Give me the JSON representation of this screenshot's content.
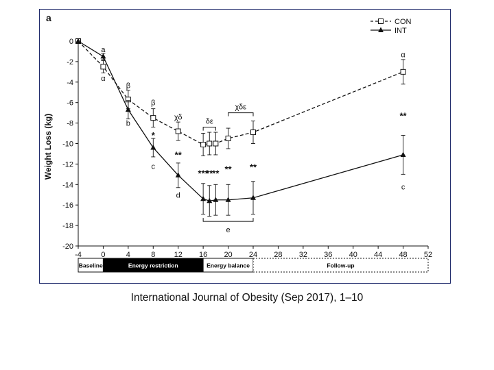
{
  "chart_data": {
    "type": "line",
    "panel_label": "a",
    "ylabel": "Weight Loss (kg)",
    "xlabel": "",
    "xlim": [
      -4,
      52
    ],
    "ylim": [
      -20,
      0
    ],
    "xticks": [
      -4,
      0,
      4,
      8,
      12,
      16,
      20,
      24,
      28,
      32,
      36,
      40,
      44,
      48,
      52
    ],
    "yticks": [
      0,
      -2,
      -4,
      -6,
      -8,
      -10,
      -12,
      -14,
      -16,
      -18,
      -20
    ],
    "series": [
      {
        "name": "CON",
        "style": "dashed",
        "marker": "open-square",
        "x": [
          -4,
          0,
          4,
          8,
          12,
          16,
          17,
          18,
          20,
          24,
          48
        ],
        "values": [
          0,
          -2.5,
          -5.7,
          -7.5,
          -8.8,
          -10.1,
          -10.0,
          -10.0,
          -9.5,
          -8.9,
          -3.0
        ],
        "err": [
          0,
          0.6,
          0.9,
          0.9,
          0.9,
          1.1,
          1.1,
          1.1,
          1.0,
          1.1,
          1.2
        ]
      },
      {
        "name": "INT",
        "style": "solid",
        "marker": "filled-triangle",
        "x": [
          -4,
          0,
          4,
          8,
          12,
          16,
          17,
          18,
          20,
          24,
          48
        ],
        "values": [
          0,
          -1.5,
          -6.7,
          -10.4,
          -13.1,
          -15.4,
          -15.6,
          -15.5,
          -15.5,
          -15.3,
          -11.1
        ],
        "err": [
          0,
          0.3,
          0.9,
          0.9,
          1.2,
          1.5,
          1.5,
          1.5,
          1.5,
          1.6,
          1.9
        ]
      }
    ],
    "annotations": [
      {
        "text": "a",
        "x": 0,
        "y": -0.8
      },
      {
        "text": "α",
        "x": 0,
        "y": -3.6
      },
      {
        "text": "β",
        "x": 4,
        "y": -4.3
      },
      {
        "text": "b",
        "x": 4,
        "y": -8.0
      },
      {
        "text": "β",
        "x": 8,
        "y": -6.0
      },
      {
        "text": "*",
        "x": 8,
        "y": -9.1
      },
      {
        "text": "c",
        "x": 8,
        "y": -12.2
      },
      {
        "text": "χδ",
        "x": 12,
        "y": -7.4
      },
      {
        "text": "**",
        "x": 12,
        "y": -11.0
      },
      {
        "text": "d",
        "x": 12,
        "y": -15.0
      },
      {
        "text": "δε",
        "x": 17,
        "y": -7.8
      },
      {
        "text": "χδε",
        "x": 22,
        "y": -6.4
      },
      {
        "text": "***",
        "x": 16,
        "y": -12.8
      },
      {
        "text": "**",
        "x": 17,
        "y": -12.8
      },
      {
        "text": "**",
        "x": 18,
        "y": -12.8
      },
      {
        "text": "**",
        "x": 20,
        "y": -12.4
      },
      {
        "text": "**",
        "x": 24,
        "y": -12.2
      },
      {
        "text": "e",
        "x": 20,
        "y": -18.4
      },
      {
        "text": "α",
        "x": 48,
        "y": -1.3
      },
      {
        "text": "**",
        "x": 48,
        "y": -7.2
      },
      {
        "text": "c",
        "x": 48,
        "y": -14.2
      }
    ],
    "brackets": [
      {
        "x1": 16,
        "x2": 18,
        "y": -8.4,
        "dir": "up"
      },
      {
        "x1": 20,
        "x2": 24,
        "y": -7.0,
        "dir": "up"
      },
      {
        "x1": 16,
        "x2": 24,
        "y": -17.6,
        "dir": "down"
      }
    ],
    "phases": [
      {
        "label": "Baseline",
        "x1": -4,
        "x2": 0,
        "fill": "#ffffff",
        "text": "#000000",
        "border": "solid"
      },
      {
        "label": "Energy restriction",
        "x1": 0,
        "x2": 16,
        "fill": "#000000",
        "text": "#ffffff",
        "border": "solid"
      },
      {
        "label": "Energy balance",
        "x1": 16,
        "x2": 24,
        "fill": "#ffffff",
        "text": "#000000",
        "border": "solid"
      },
      {
        "label": "Follow-up",
        "x1": 24,
        "x2": 52,
        "fill": "#ffffff",
        "text": "#000000",
        "border": "dashed"
      }
    ],
    "legend": {
      "placement": "top-right",
      "entries": [
        "CON",
        "INT"
      ]
    }
  },
  "caption": "International Journal of Obesity (Sep 2017), 1–10",
  "colors": {
    "frame": "#1f2a6b",
    "ink": "#111111"
  }
}
